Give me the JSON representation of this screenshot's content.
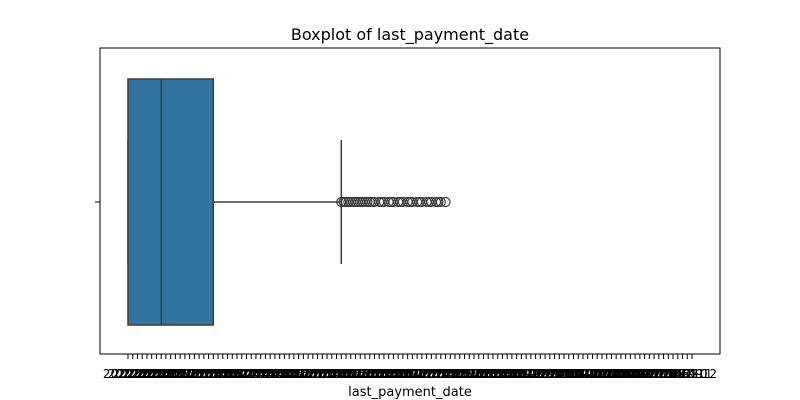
{
  "chart_data": {
    "type": "boxplot",
    "title": "Boxplot of last_payment_date",
    "xlabel": "last_payment_date",
    "ylabel": "",
    "orientation": "horizontal",
    "x_categories": [
      "2022-01",
      "2022-02",
      "2022-03",
      "2022-04",
      "2022-05",
      "2022-06",
      "2022-07",
      "2022-08",
      "2022-09",
      "2022-10",
      "2022-11",
      "2022-12",
      "2023-01",
      "2023-02",
      "2023-03",
      "2023-04",
      "2023-05",
      "2023-06",
      "2023-07",
      "2023-08",
      "2023-09",
      "2023-10",
      "2023-11",
      "2023-12",
      "2024-01",
      "2024-02",
      "2024-03",
      "2024-04",
      "2024-05",
      "2024-06",
      "2024-07",
      "2024-08",
      "2024-09",
      "2024-10",
      "2024-11",
      "2024-12",
      "2025-01",
      "2025-02",
      "2025-03",
      "2025-04",
      "2025-05",
      "2025-06",
      "2025-07",
      "2025-08",
      "2025-09",
      "2025-10",
      "2025-11",
      "2025-12",
      "2026-01",
      "2026-02",
      "2026-03",
      "2026-04",
      "2026-05",
      "2026-06",
      "2026-07",
      "2026-08",
      "2026-09",
      "2026-10",
      "2026-11",
      "2026-12",
      "2027-01",
      "2027-02",
      "2027-03",
      "2027-04",
      "2027-05",
      "2027-06",
      "2027-07",
      "2027-08",
      "2027-09",
      "2027-10",
      "2027-11",
      "2027-12",
      "2028-01",
      "2028-02",
      "2028-03",
      "2028-04",
      "2028-05",
      "2028-06",
      "2028-07",
      "2028-08",
      "2028-09",
      "2028-10",
      "2028-11",
      "2028-12",
      "2029-01",
      "2029-02",
      "2029-03",
      "2029-04",
      "2029-05",
      "2029-06",
      "2029-07",
      "2029-08",
      "2029-09",
      "2029-10",
      "2029-11",
      "2029-12",
      "2030-01",
      "2030-02",
      "2030-03",
      "2030-04",
      "2030-05",
      "2030-06",
      "2030-07",
      "2030-08",
      "2030-09",
      "2030-10",
      "2030-11",
      "2030-12",
      "2031-01",
      "2031-02",
      "2031-03",
      "2031-04",
      "2031-05",
      "2031-06",
      "2031-07",
      "2031-08",
      "2031-09",
      "2031-10",
      "2031-11",
      "2031-12"
    ],
    "box": {
      "whisker_low": 0,
      "q1": 0,
      "median": 7,
      "q3": 18,
      "whisker_high": 45
    },
    "outliers": [
      45,
      45.5,
      46,
      46.5,
      47,
      47.5,
      48,
      48.5,
      49,
      49.5,
      50,
      50.5,
      51,
      51.5,
      52,
      53,
      53.5,
      54,
      55,
      55.5,
      56,
      57,
      57.5,
      58,
      59,
      59.5,
      60,
      61,
      61.5,
      62,
      63,
      63.5,
      64,
      65,
      65.5,
      66,
      67
    ],
    "colors": {
      "box_fill": "#3274a1",
      "line": "#3d3d3d",
      "axis": "#000000"
    },
    "grid": false
  }
}
